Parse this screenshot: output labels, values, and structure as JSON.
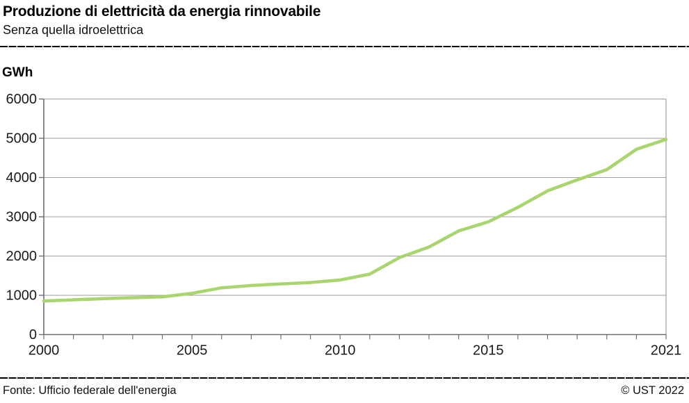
{
  "header": {
    "title": "Produzione di elettricità da energia rinnovabile",
    "subtitle": "Senza quella idroelettrica"
  },
  "chart_data": {
    "type": "line",
    "title": "Produzione di elettricità da energia rinnovabile",
    "subtitle": "Senza quella idroelettrica",
    "ylabel": "GWh",
    "xlabel": "",
    "x": [
      2000,
      2001,
      2002,
      2003,
      2004,
      2005,
      2006,
      2007,
      2008,
      2009,
      2010,
      2011,
      2012,
      2013,
      2014,
      2015,
      2016,
      2017,
      2018,
      2019,
      2020,
      2021
    ],
    "series": [
      {
        "name": "Produzione di elettricità da energia rinnovabile senza quella idroelettrica",
        "values": [
          855,
          885,
          915,
          940,
          960,
          1050,
          1190,
          1250,
          1290,
          1325,
          1390,
          1540,
          1960,
          2230,
          2640,
          2870,
          3240,
          3660,
          3940,
          4200,
          4720,
          4970
        ]
      }
    ],
    "ylim": [
      0,
      6000
    ],
    "yticks": [
      0,
      1000,
      2000,
      3000,
      4000,
      5000,
      6000
    ],
    "xtick_labels": [
      2000,
      2005,
      2010,
      2015,
      2021
    ],
    "grid": "horizontal",
    "legend": "none",
    "line_color": "#a9d56e",
    "axis_color": "#6f6f6f",
    "grid_color": "#9e9e9e",
    "text_color": "#1a1a1a"
  },
  "footer": {
    "source": "Fonte: Ufficio federale dell'energia",
    "copyright": "© UST 2022"
  }
}
